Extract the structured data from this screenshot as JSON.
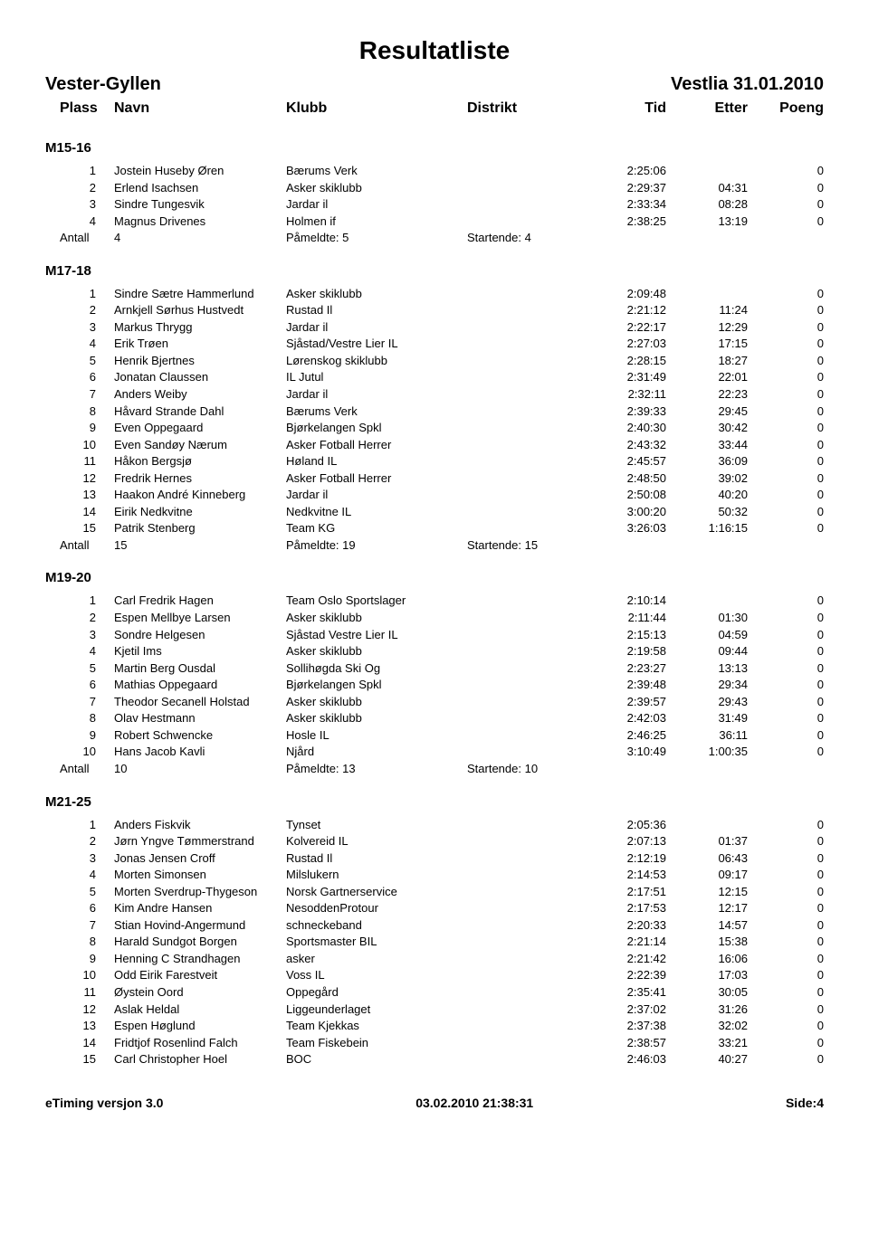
{
  "title": "Resultatliste",
  "event_name": "Vester-Gyllen",
  "event_date": "Vestlia 31.01.2010",
  "headers": {
    "plass": "Plass",
    "navn": "Navn",
    "klubb": "Klubb",
    "distrikt": "Distrikt",
    "tid": "Tid",
    "etter": "Etter",
    "poeng": "Poeng"
  },
  "summary_labels": {
    "antall": "Antall",
    "pameldte": "Påmeldte:",
    "startende": "Startende:"
  },
  "categories": [
    {
      "name": "M15-16",
      "rows": [
        {
          "plass": "1",
          "navn": "Jostein Huseby Øren",
          "klubb": "Bærums Verk",
          "tid": "2:25:06",
          "etter": "",
          "poeng": "0"
        },
        {
          "plass": "2",
          "navn": "Erlend Isachsen",
          "klubb": "Asker skiklubb",
          "tid": "2:29:37",
          "etter": "04:31",
          "poeng": "0"
        },
        {
          "plass": "3",
          "navn": "Sindre Tungesvik",
          "klubb": "Jardar il",
          "tid": "2:33:34",
          "etter": "08:28",
          "poeng": "0"
        },
        {
          "plass": "4",
          "navn": "Magnus Drivenes",
          "klubb": "Holmen if",
          "tid": "2:38:25",
          "etter": "13:19",
          "poeng": "0"
        }
      ],
      "summary": {
        "antall": "4",
        "pameldte": "5",
        "startende": "4"
      }
    },
    {
      "name": "M17-18",
      "rows": [
        {
          "plass": "1",
          "navn": "Sindre Sætre Hammerlund",
          "klubb": "Asker skiklubb",
          "tid": "2:09:48",
          "etter": "",
          "poeng": "0"
        },
        {
          "plass": "2",
          "navn": "Arnkjell Sørhus Hustvedt",
          "klubb": "Rustad Il",
          "tid": "2:21:12",
          "etter": "11:24",
          "poeng": "0"
        },
        {
          "plass": "3",
          "navn": "Markus Thrygg",
          "klubb": "Jardar il",
          "tid": "2:22:17",
          "etter": "12:29",
          "poeng": "0"
        },
        {
          "plass": "4",
          "navn": "Erik Trøen",
          "klubb": "Sjåstad/Vestre Lier IL",
          "tid": "2:27:03",
          "etter": "17:15",
          "poeng": "0"
        },
        {
          "plass": "5",
          "navn": "Henrik Bjertnes",
          "klubb": "Lørenskog skiklubb",
          "tid": "2:28:15",
          "etter": "18:27",
          "poeng": "0"
        },
        {
          "plass": "6",
          "navn": "Jonatan Claussen",
          "klubb": "IL Jutul",
          "tid": "2:31:49",
          "etter": "22:01",
          "poeng": "0"
        },
        {
          "plass": "7",
          "navn": "Anders Weiby",
          "klubb": "Jardar il",
          "tid": "2:32:11",
          "etter": "22:23",
          "poeng": "0"
        },
        {
          "plass": "8",
          "navn": "Håvard Strande Dahl",
          "klubb": "Bærums Verk",
          "tid": "2:39:33",
          "etter": "29:45",
          "poeng": "0"
        },
        {
          "plass": "9",
          "navn": "Even Oppegaard",
          "klubb": "Bjørkelangen Spkl",
          "tid": "2:40:30",
          "etter": "30:42",
          "poeng": "0"
        },
        {
          "plass": "10",
          "navn": "Even Sandøy Nærum",
          "klubb": "Asker Fotball Herrer",
          "tid": "2:43:32",
          "etter": "33:44",
          "poeng": "0"
        },
        {
          "plass": "11",
          "navn": "Håkon Bergsjø",
          "klubb": "Høland IL",
          "tid": "2:45:57",
          "etter": "36:09",
          "poeng": "0"
        },
        {
          "plass": "12",
          "navn": "Fredrik Hernes",
          "klubb": "Asker Fotball Herrer",
          "tid": "2:48:50",
          "etter": "39:02",
          "poeng": "0"
        },
        {
          "plass": "13",
          "navn": "Haakon André Kinneberg",
          "klubb": "Jardar il",
          "tid": "2:50:08",
          "etter": "40:20",
          "poeng": "0"
        },
        {
          "plass": "14",
          "navn": "Eirik Nedkvitne",
          "klubb": "Nedkvitne IL",
          "tid": "3:00:20",
          "etter": "50:32",
          "poeng": "0"
        },
        {
          "plass": "15",
          "navn": "Patrik Stenberg",
          "klubb": "Team KG",
          "tid": "3:26:03",
          "etter": "1:16:15",
          "poeng": "0"
        }
      ],
      "summary": {
        "antall": "15",
        "pameldte": "19",
        "startende": "15"
      }
    },
    {
      "name": "M19-20",
      "rows": [
        {
          "plass": "1",
          "navn": "Carl Fredrik Hagen",
          "klubb": "Team Oslo Sportslager",
          "tid": "2:10:14",
          "etter": "",
          "poeng": "0"
        },
        {
          "plass": "2",
          "navn": "Espen Mellbye Larsen",
          "klubb": "Asker skiklubb",
          "tid": "2:11:44",
          "etter": "01:30",
          "poeng": "0"
        },
        {
          "plass": "3",
          "navn": "Sondre Helgesen",
          "klubb": "Sjåstad Vestre Lier IL",
          "tid": "2:15:13",
          "etter": "04:59",
          "poeng": "0"
        },
        {
          "plass": "4",
          "navn": "Kjetil Ims",
          "klubb": "Asker skiklubb",
          "tid": "2:19:58",
          "etter": "09:44",
          "poeng": "0"
        },
        {
          "plass": "5",
          "navn": "Martin Berg Ousdal",
          "klubb": "Sollihøgda Ski Og",
          "tid": "2:23:27",
          "etter": "13:13",
          "poeng": "0"
        },
        {
          "plass": "6",
          "navn": "Mathias Oppegaard",
          "klubb": "Bjørkelangen Spkl",
          "tid": "2:39:48",
          "etter": "29:34",
          "poeng": "0"
        },
        {
          "plass": "7",
          "navn": "Theodor Secanell Holstad",
          "klubb": "Asker skiklubb",
          "tid": "2:39:57",
          "etter": "29:43",
          "poeng": "0"
        },
        {
          "plass": "8",
          "navn": "Olav Hestmann",
          "klubb": "Asker skiklubb",
          "tid": "2:42:03",
          "etter": "31:49",
          "poeng": "0"
        },
        {
          "plass": "9",
          "navn": "Robert Schwencke",
          "klubb": "Hosle IL",
          "tid": "2:46:25",
          "etter": "36:11",
          "poeng": "0"
        },
        {
          "plass": "10",
          "navn": "Hans Jacob Kavli",
          "klubb": "Njård",
          "tid": "3:10:49",
          "etter": "1:00:35",
          "poeng": "0"
        }
      ],
      "summary": {
        "antall": "10",
        "pameldte": "13",
        "startende": "10"
      }
    },
    {
      "name": "M21-25",
      "rows": [
        {
          "plass": "1",
          "navn": "Anders Fiskvik",
          "klubb": "Tynset",
          "tid": "2:05:36",
          "etter": "",
          "poeng": "0"
        },
        {
          "plass": "2",
          "navn": "Jørn Yngve Tømmerstrand",
          "klubb": "Kolvereid IL",
          "tid": "2:07:13",
          "etter": "01:37",
          "poeng": "0"
        },
        {
          "plass": "3",
          "navn": "Jonas Jensen Croff",
          "klubb": "Rustad Il",
          "tid": "2:12:19",
          "etter": "06:43",
          "poeng": "0"
        },
        {
          "plass": "4",
          "navn": "Morten Simonsen",
          "klubb": "Milslukern",
          "tid": "2:14:53",
          "etter": "09:17",
          "poeng": "0"
        },
        {
          "plass": "5",
          "navn": "Morten Sverdrup-Thygeson",
          "klubb": "Norsk Gartnerservice",
          "tid": "2:17:51",
          "etter": "12:15",
          "poeng": "0"
        },
        {
          "plass": "6",
          "navn": "Kim Andre Hansen",
          "klubb": "NesoddenProtour",
          "tid": "2:17:53",
          "etter": "12:17",
          "poeng": "0"
        },
        {
          "plass": "7",
          "navn": "Stian Hovind-Angermund",
          "klubb": "schneckeband",
          "tid": "2:20:33",
          "etter": "14:57",
          "poeng": "0"
        },
        {
          "plass": "8",
          "navn": "Harald Sundgot Borgen",
          "klubb": "Sportsmaster BIL",
          "tid": "2:21:14",
          "etter": "15:38",
          "poeng": "0"
        },
        {
          "plass": "9",
          "navn": "Henning C Strandhagen",
          "klubb": "asker",
          "tid": "2:21:42",
          "etter": "16:06",
          "poeng": "0"
        },
        {
          "plass": "10",
          "navn": "Odd Eirik Farestveit",
          "klubb": "Voss IL",
          "tid": "2:22:39",
          "etter": "17:03",
          "poeng": "0"
        },
        {
          "plass": "11",
          "navn": "Øystein Oord",
          "klubb": "Oppegård",
          "tid": "2:35:41",
          "etter": "30:05",
          "poeng": "0"
        },
        {
          "plass": "12",
          "navn": "Aslak Heldal",
          "klubb": "Liggeunderlaget",
          "tid": "2:37:02",
          "etter": "31:26",
          "poeng": "0"
        },
        {
          "plass": "13",
          "navn": "Espen Høglund",
          "klubb": "Team Kjekkas",
          "tid": "2:37:38",
          "etter": "32:02",
          "poeng": "0"
        },
        {
          "plass": "14",
          "navn": "Fridtjof Rosenlind Falch",
          "klubb": "Team Fiskebein",
          "tid": "2:38:57",
          "etter": "33:21",
          "poeng": "0"
        },
        {
          "plass": "15",
          "navn": "Carl Christopher Hoel",
          "klubb": "BOC",
          "tid": "2:46:03",
          "etter": "40:27",
          "poeng": "0"
        }
      ],
      "summary": null
    }
  ],
  "footer": {
    "left": "eTiming versjon 3.0",
    "center": "03.02.2010 21:38:31",
    "right": "Side:4"
  }
}
